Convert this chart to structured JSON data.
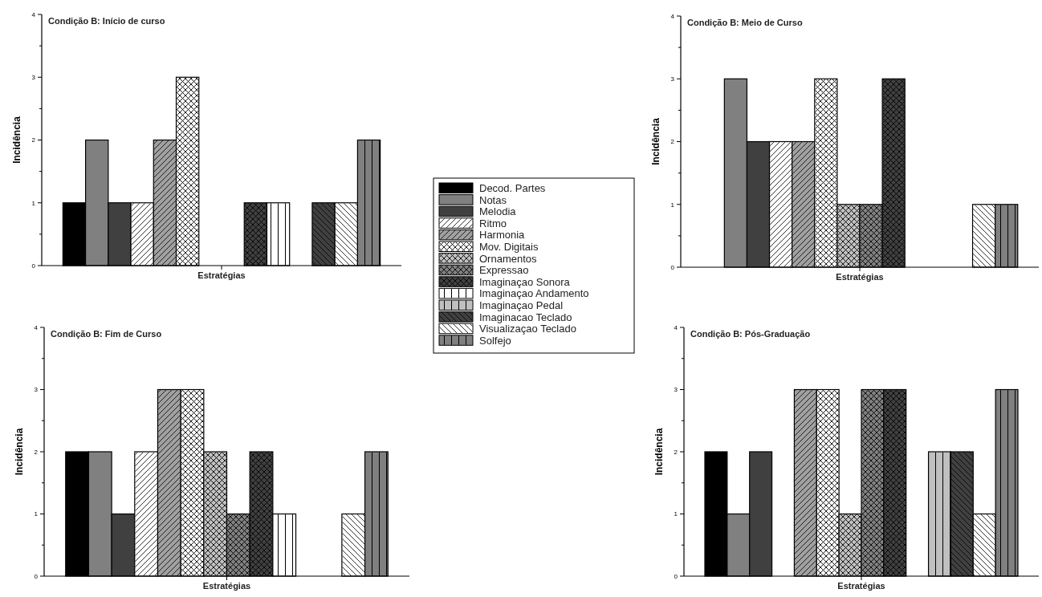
{
  "chart_data": [
    {
      "type": "bar",
      "title": "Condição B: Início de curso",
      "xlabel": "Estratégias",
      "ylabel": "Incidência",
      "categories": [
        null
      ],
      "ylim": [
        0,
        4
      ],
      "yticks": [
        0,
        {
          "value": 0.5,
          "label": null
        },
        1,
        {
          "value": 1.5,
          "label": null
        },
        2,
        {
          "value": 2.5,
          "label": null
        },
        3,
        {
          "value": 3.5,
          "label": null
        },
        4
      ],
      "grid": false,
      "legend": "right",
      "series": [
        {
          "name": "Decod. Partes",
          "color": "#000000",
          "values": [
            1
          ]
        },
        {
          "name": "Notas",
          "color": "#808080",
          "values": [
            2
          ]
        },
        {
          "name": "Melodia",
          "color": "#404040",
          "values": [
            1
          ]
        },
        {
          "name": "Ritmo",
          "color": "#ffffff",
          "values": [
            1
          ]
        },
        {
          "name": "Harmonia",
          "color": "#a0a0a0",
          "values": [
            2
          ]
        },
        {
          "name": "Mov. Digitais",
          "color": "#ffffff",
          "values": [
            3
          ]
        },
        {
          "name": "Ornamentos",
          "color": "#c0c0c0",
          "values": [
            0
          ]
        },
        {
          "name": "Expressao",
          "color": "#808080",
          "values": [
            0
          ]
        },
        {
          "name": "Imaginaçao Sonora",
          "color": "#404040",
          "values": [
            1
          ]
        },
        {
          "name": "Imaginaçao Andamento",
          "color": "#ffffff",
          "values": [
            1
          ]
        },
        {
          "name": "Imaginaçao Pedal",
          "color": "#c0c0c0",
          "values": [
            0
          ]
        },
        {
          "name": "Imaginacao Teclado",
          "color": "#404040",
          "values": [
            1
          ]
        },
        {
          "name": "Visualizaçao Teclado",
          "color": "#ffffff",
          "values": [
            1
          ]
        },
        {
          "name": "Solfejo",
          "color": "#808080",
          "values": [
            2
          ]
        }
      ]
    },
    {
      "type": "bar",
      "title": "Condição B: Meio de Curso",
      "xlabel": "Estratégias",
      "ylabel": "Incidência",
      "categories": [
        null
      ],
      "ylim": [
        0,
        4
      ],
      "yticks": [
        0,
        {
          "value": 0.5,
          "label": null
        },
        1,
        {
          "value": 1.5,
          "label": null
        },
        2,
        {
          "value": 2.5,
          "label": null
        },
        3,
        {
          "value": 3.5,
          "label": null
        },
        4
      ],
      "grid": false,
      "series": [
        {
          "color": "#000000",
          "values": [
            0
          ]
        },
        {
          "color": "#808080",
          "values": [
            3
          ]
        },
        {
          "color": "#404040",
          "values": [
            2
          ]
        },
        {
          "color": "#ffffff",
          "values": [
            2
          ]
        },
        {
          "color": "#a0a0a0",
          "values": [
            2
          ]
        },
        {
          "color": "#ffffff",
          "values": [
            3
          ]
        },
        {
          "color": "#c0c0c0",
          "values": [
            1
          ]
        },
        {
          "color": "#808080",
          "values": [
            1
          ]
        },
        {
          "color": "#404040",
          "values": [
            3
          ]
        },
        {
          "color": "#ffffff",
          "values": [
            0
          ]
        },
        {
          "color": "#c0c0c0",
          "values": [
            0
          ]
        },
        {
          "color": "#404040",
          "values": [
            0
          ]
        },
        {
          "color": "#ffffff",
          "values": [
            1
          ]
        },
        {
          "color": "#808080",
          "values": [
            1
          ]
        }
      ]
    },
    {
      "type": "bar",
      "title": "Condição B: Fim de Curso",
      "xlabel": "Estratégias",
      "ylabel": "Incidência",
      "categories": [
        null
      ],
      "ylim": [
        0,
        4
      ],
      "yticks": [
        0,
        {
          "value": 0.5,
          "label": null
        },
        1,
        {
          "value": 1.5,
          "label": null
        },
        2,
        {
          "value": 2.5,
          "label": null
        },
        3,
        {
          "value": 3.5,
          "label": null
        },
        4
      ],
      "grid": false,
      "series": [
        {
          "color": "#000000",
          "values": [
            2
          ]
        },
        {
          "color": "#808080",
          "values": [
            2
          ]
        },
        {
          "color": "#404040",
          "values": [
            1
          ]
        },
        {
          "color": "#ffffff",
          "values": [
            2
          ]
        },
        {
          "color": "#a0a0a0",
          "values": [
            3
          ]
        },
        {
          "color": "#ffffff",
          "values": [
            3
          ]
        },
        {
          "color": "#c0c0c0",
          "values": [
            2
          ]
        },
        {
          "color": "#808080",
          "values": [
            1
          ]
        },
        {
          "color": "#404040",
          "values": [
            2
          ]
        },
        {
          "color": "#ffffff",
          "values": [
            1
          ]
        },
        {
          "color": "#c0c0c0",
          "values": [
            0
          ]
        },
        {
          "color": "#404040",
          "values": [
            0
          ]
        },
        {
          "color": "#ffffff",
          "values": [
            1
          ]
        },
        {
          "color": "#808080",
          "values": [
            2
          ]
        }
      ]
    },
    {
      "type": "bar",
      "title": "Condição B: Pós-Graduação",
      "xlabel": "Estratégias",
      "ylabel": "Incidência",
      "categories": [
        null
      ],
      "ylim": [
        0,
        4
      ],
      "yticks": [
        0,
        {
          "value": 0.5,
          "label": null
        },
        1,
        {
          "value": 1.5,
          "label": null
        },
        2,
        {
          "value": 2.5,
          "label": null
        },
        3,
        {
          "value": 3.5,
          "label": null
        },
        4
      ],
      "grid": false,
      "series": [
        {
          "color": "#000000",
          "values": [
            2
          ]
        },
        {
          "color": "#808080",
          "values": [
            1
          ]
        },
        {
          "color": "#404040",
          "values": [
            2
          ]
        },
        {
          "color": "#ffffff",
          "values": [
            0
          ]
        },
        {
          "color": "#a0a0a0",
          "values": [
            3
          ]
        },
        {
          "color": "#ffffff",
          "values": [
            3
          ]
        },
        {
          "color": "#c0c0c0",
          "values": [
            1
          ]
        },
        {
          "color": "#808080",
          "values": [
            3
          ]
        },
        {
          "color": "#404040",
          "values": [
            3
          ]
        },
        {
          "color": "#ffffff",
          "values": [
            0
          ]
        },
        {
          "color": "#c0c0c0",
          "values": [
            2
          ]
        },
        {
          "color": "#404040",
          "values": [
            2
          ]
        },
        {
          "color": "#ffffff",
          "values": [
            1
          ]
        },
        {
          "color": "#808080",
          "values": [
            3
          ]
        }
      ]
    }
  ]
}
